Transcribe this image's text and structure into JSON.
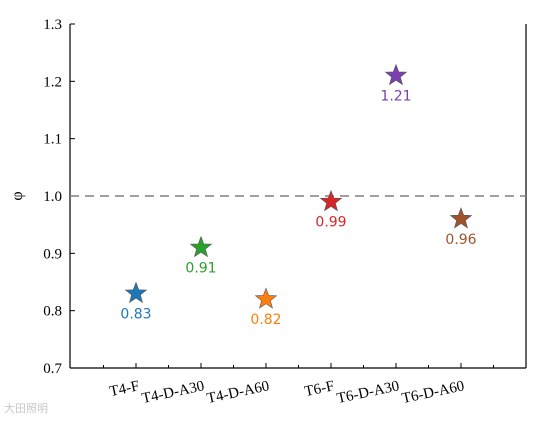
{
  "chart_data": {
    "type": "scatter",
    "title": "",
    "xlabel": "",
    "ylabel": "φ",
    "categories": [
      "T4-F",
      "T4-D-A30",
      "T4-D-A60",
      "T6-F",
      "T6-D-A30",
      "T6-D-A60"
    ],
    "values": [
      0.83,
      0.91,
      0.82,
      0.99,
      1.21,
      0.96
    ],
    "value_labels": [
      "0.83",
      "0.91",
      "0.82",
      "0.99",
      "1.21",
      "0.96"
    ],
    "colors": [
      "#1f77b4",
      "#2ca02c",
      "#ff7f0e",
      "#d62728",
      "#7b3fb0",
      "#a0522d"
    ],
    "marker": "star",
    "ylim": [
      0.7,
      1.3
    ],
    "yticks": [
      0.7,
      0.8,
      0.9,
      1.0,
      1.1,
      1.2,
      1.3
    ],
    "ytick_labels": [
      "0.7",
      "0.8",
      "0.9",
      "1.0",
      "1.1",
      "1.2",
      "1.3"
    ],
    "reference_line": {
      "y": 1.0,
      "style": "dashed",
      "color": "#808080"
    },
    "grid": false,
    "legend": "none"
  },
  "watermark": {
    "text": "大田照明"
  }
}
